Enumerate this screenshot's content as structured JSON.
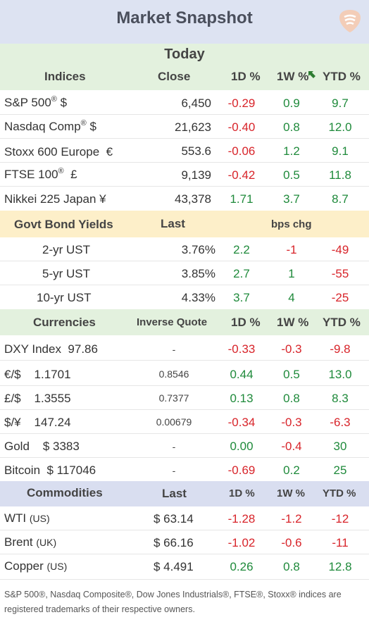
{
  "title": "Market Snapshot",
  "today_label": "Today",
  "indices": {
    "headers": {
      "name": "Indices",
      "close": "Close",
      "d1": "1D %",
      "w1": "1W %",
      "ytd": "YTD %"
    },
    "rows": [
      {
        "name": "S&P 500",
        "reg": "®",
        "suffix": " $",
        "close": "6,450",
        "d1": "-0.29",
        "w1": "0.9",
        "ytd": "9.7"
      },
      {
        "name": "Nasdaq Comp",
        "reg": "®",
        "suffix": " $",
        "close": "21,623",
        "d1": "-0.40",
        "w1": "0.8",
        "ytd": "12.0"
      },
      {
        "name": "Stoxx 600 Europe",
        "reg": "",
        "suffix": "  €",
        "close": "553.6",
        "d1": "-0.06",
        "w1": "1.2",
        "ytd": "9.1"
      },
      {
        "name": "FTSE 100",
        "reg": "®",
        "suffix": "  £",
        "close": "9,139",
        "d1": "-0.42",
        "w1": "0.5",
        "ytd": "11.8"
      },
      {
        "name": "Nikkei 225 Japan ¥",
        "reg": "",
        "suffix": "",
        "close": "43,378",
        "d1": "1.71",
        "w1": "3.7",
        "ytd": "8.7"
      }
    ]
  },
  "bonds": {
    "headers": {
      "name": "Govt Bond Yields",
      "last": "Last",
      "chg": "bps chg"
    },
    "rows": [
      {
        "name": "2-yr UST",
        "last": "3.76%",
        "d1": "2.2",
        "w1": "-1",
        "ytd": "-49"
      },
      {
        "name": "5-yr UST",
        "last": "3.85%",
        "d1": "2.7",
        "w1": "1",
        "ytd": "-55"
      },
      {
        "name": "10-yr UST",
        "last": "4.33%",
        "d1": "3.7",
        "w1": "4",
        "ytd": "-25"
      }
    ]
  },
  "currencies": {
    "headers": {
      "name": "Currencies",
      "inverse": "Inverse Quote",
      "d1": "1D %",
      "w1": "1W %",
      "ytd": "YTD %"
    },
    "rows": [
      {
        "name": "DXY Index",
        "value": "97.86",
        "inverse": "-",
        "d1": "-0.33",
        "w1": "-0.3",
        "ytd": "-9.8"
      },
      {
        "name": "€/$",
        "value": "1.1701",
        "inverse": "0.8546",
        "d1": "0.44",
        "w1": "0.5",
        "ytd": "13.0"
      },
      {
        "name": "£/$",
        "value": "1.3555",
        "inverse": "0.7377",
        "d1": "0.13",
        "w1": "0.8",
        "ytd": "8.3"
      },
      {
        "name": "$/¥",
        "value": "147.24",
        "inverse": "0.00679",
        "d1": "-0.34",
        "w1": "-0.3",
        "ytd": "-6.3"
      },
      {
        "name": "Gold",
        "value": "$ 3383",
        "inverse": "-",
        "d1": "0.00",
        "w1": "-0.4",
        "ytd": "30"
      },
      {
        "name": "Bitcoin",
        "value": "$ 117046",
        "inverse": "-",
        "d1": "-0.69",
        "w1": "0.2",
        "ytd": "25"
      }
    ]
  },
  "commodities": {
    "headers": {
      "name": "Commodities",
      "last": "Last",
      "d1": "1D %",
      "w1": "1W %",
      "ytd": "YTD %"
    },
    "rows": [
      {
        "name": "WTI",
        "origin": "(US)",
        "last": "$ 63.14",
        "d1": "-1.28",
        "w1": "-1.2",
        "ytd": "-12"
      },
      {
        "name": "Brent",
        "origin": "(UK)",
        "last": "$ 66.16",
        "d1": "-1.02",
        "w1": "-0.6",
        "ytd": "-11"
      },
      {
        "name": "Copper",
        "origin": "(US)",
        "last": "$ 4.491",
        "d1": "0.26",
        "w1": "0.8",
        "ytd": "12.8"
      }
    ]
  },
  "footnote": "S&P 500®, Nasdaq Composite®, Dow Jones Industrials®, FTSE®, Stoxx® indices are registered trademarks of their respective owners.",
  "colors": {
    "negative": "#d8242a",
    "positive": "#1f8a3b",
    "header_green": "#e3f1de",
    "header_yellow": "#fdefc9",
    "header_blue": "#d9def0",
    "title_bg": "#dde3f2"
  },
  "icons": {
    "logo": "guitar-pick-logo",
    "cursor": "resize-cursor-icon"
  }
}
